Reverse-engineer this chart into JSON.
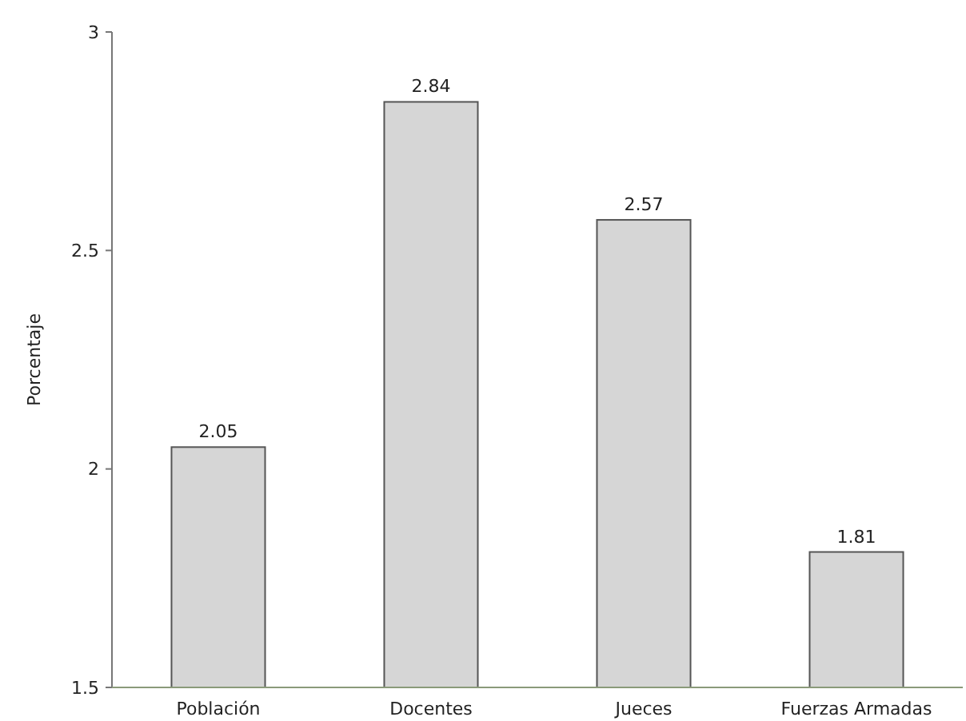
{
  "chart_data": {
    "type": "bar",
    "ylabel": "Porcentaje",
    "categories": [
      "Población",
      "Docentes",
      "Jueces",
      "Fuerzas Armadas"
    ],
    "values": [
      2.05,
      2.84,
      2.57,
      1.81
    ],
    "color": "#d6d6d6",
    "ylim": [
      1.5,
      3
    ],
    "yticks": [
      1.5,
      2,
      2.5,
      3
    ],
    "data_labels": true,
    "grid": false
  }
}
